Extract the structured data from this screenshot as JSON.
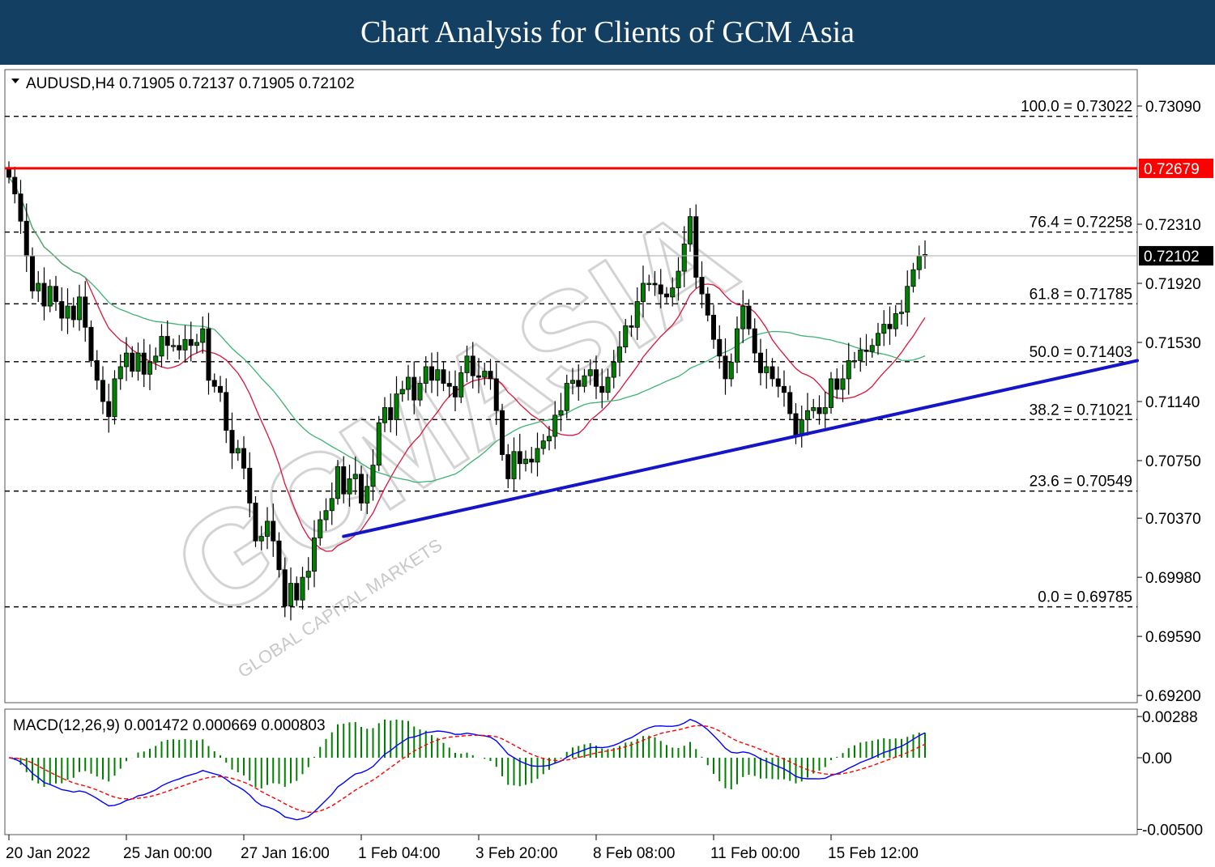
{
  "banner": {
    "title": "Chart Analysis for Clients of GCM Asia"
  },
  "chart_data": {
    "type": "candlestick",
    "symbol_header": "AUDUSD,H4  0.71905 0.72137 0.71905 0.72102",
    "price_axis": {
      "ylim": [
        0.692,
        0.732
      ],
      "ticks": [
        "0.73090",
        "0.72310",
        "0.71920",
        "0.71530",
        "0.71140",
        "0.70750",
        "0.70370",
        "0.69980",
        "0.69590",
        "0.69200"
      ]
    },
    "resistance": {
      "value": 0.72679,
      "label": "0.72679",
      "color": "#ff0000"
    },
    "current_price": {
      "value": 0.72102,
      "label": "0.72102"
    },
    "fibonacci": [
      {
        "label": "100.0 = 0.73022",
        "value": 0.73022
      },
      {
        "label": "76.4 = 0.72258",
        "value": 0.72258
      },
      {
        "label": "61.8 = 0.71785",
        "value": 0.71785
      },
      {
        "label": "50.0 = 0.71403",
        "value": 0.71403
      },
      {
        "label": "38.2 = 0.71021",
        "value": 0.71021
      },
      {
        "label": "23.6 = 0.70549",
        "value": 0.70549
      },
      {
        "label": "0.0 = 0.69785",
        "value": 0.69785
      }
    ],
    "trendline": {
      "color": "#1414c8",
      "start": {
        "bar": 57,
        "price": 0.7025
      },
      "end": {
        "bar": 193,
        "price": 0.7141
      }
    },
    "time_labels": [
      {
        "label": "20 Jan 2022",
        "bar": 0
      },
      {
        "label": "25 Jan 00:00",
        "bar": 20
      },
      {
        "label": "27 Jan 16:00",
        "bar": 40
      },
      {
        "label": "1 Feb 04:00",
        "bar": 60
      },
      {
        "label": "3 Feb 20:00",
        "bar": 80
      },
      {
        "label": "8 Feb 08:00",
        "bar": 100
      },
      {
        "label": "11 Feb 00:00",
        "bar": 120
      },
      {
        "label": "15 Feb 12:00",
        "bar": 140
      }
    ],
    "closes": [
      0.7262,
      0.7251,
      0.7233,
      0.721,
      0.7187,
      0.7192,
      0.7177,
      0.719,
      0.718,
      0.7169,
      0.7177,
      0.7168,
      0.7183,
      0.7163,
      0.7141,
      0.7128,
      0.7114,
      0.7104,
      0.7129,
      0.7137,
      0.7146,
      0.7134,
      0.7146,
      0.7132,
      0.714,
      0.7144,
      0.7157,
      0.7151,
      0.7151,
      0.7148,
      0.7155,
      0.7151,
      0.7153,
      0.7162,
      0.7128,
      0.7124,
      0.712,
      0.7095,
      0.708,
      0.7083,
      0.707,
      0.7047,
      0.7022,
      0.7025,
      0.7035,
      0.7022,
      0.7003,
      0.6979,
      0.6994,
      0.6983,
      0.6998,
      0.7002,
      0.7024,
      0.7036,
      0.7042,
      0.705,
      0.7071,
      0.7053,
      0.7063,
      0.7066,
      0.7047,
      0.7058,
      0.7072,
      0.71,
      0.711,
      0.7102,
      0.7119,
      0.7122,
      0.713,
      0.7115,
      0.7126,
      0.7137,
      0.7128,
      0.7135,
      0.7126,
      0.7124,
      0.7117,
      0.7133,
      0.7144,
      0.7131,
      0.713,
      0.7134,
      0.7129,
      0.7108,
      0.7079,
      0.7063,
      0.7081,
      0.7073,
      0.7076,
      0.7074,
      0.7083,
      0.7088,
      0.7091,
      0.7105,
      0.7108,
      0.7126,
      0.7128,
      0.7124,
      0.7131,
      0.7135,
      0.7124,
      0.712,
      0.713,
      0.714,
      0.715,
      0.7164,
      0.7163,
      0.718,
      0.7192,
      0.7192,
      0.7191,
      0.7185,
      0.7183,
      0.7189,
      0.72,
      0.7218,
      0.7236,
      0.7196,
      0.7185,
      0.7171,
      0.7155,
      0.7144,
      0.7129,
      0.714,
      0.7162,
      0.7177,
      0.7162,
      0.7146,
      0.7133,
      0.7137,
      0.7129,
      0.7124,
      0.712,
      0.7106,
      0.7092,
      0.7102,
      0.7108,
      0.711,
      0.7106,
      0.711,
      0.7129,
      0.7122,
      0.7129,
      0.7141,
      0.7141,
      0.7148,
      0.7147,
      0.7151,
      0.7159,
      0.7165,
      0.7162,
      0.7172,
      0.7173,
      0.719,
      0.7201,
      0.721,
      0.7211
    ],
    "moving_averages": [
      {
        "name": "",
        "color": "#dc143c"
      },
      {
        "name": "",
        "color": "#3cb371"
      }
    ],
    "macd": {
      "label": "MACD(12,26,9) 0.001472 0.000669 0.000803",
      "params": [
        12,
        26,
        9
      ],
      "macd": 0.001472,
      "signal": 0.000669,
      "histogram": 0.000803,
      "axis_ticks": [
        "0.00288",
        "0.00",
        "-0.00500"
      ],
      "ylim": [
        -0.0052,
        0.003
      ],
      "macd_color": "#0000ff",
      "signal_color": "#ff0000",
      "hist_color": "#008000"
    },
    "watermark": "GCMASIA",
    "watermark_sub": "GLOBAL CAPITAL MARKETS"
  }
}
